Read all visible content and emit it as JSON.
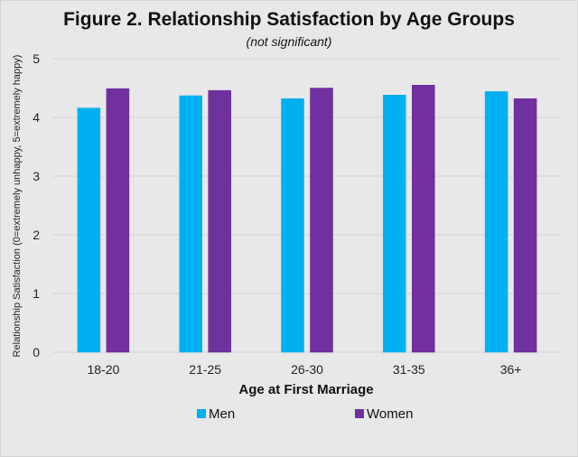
{
  "chart_data": {
    "type": "bar",
    "title": "Figure 2. Relationship Satisfaction by Age Groups",
    "subtitle": "(not significant)",
    "xlabel": "Age at First Marriage",
    "ylabel": "Relationship Satisfaction (0=extremely unhappy, 5=extremely happy)",
    "categories": [
      "18-20",
      "21-25",
      "26-30",
      "31-35",
      "36+"
    ],
    "ylim": [
      0,
      5
    ],
    "yticks": [
      0,
      1,
      2,
      3,
      4,
      5
    ],
    "grid": true,
    "legend": "bottom",
    "series": [
      {
        "name": "Men",
        "color": "#00b0f0",
        "values": [
          4.16,
          4.37,
          4.32,
          4.38,
          4.44
        ]
      },
      {
        "name": "Women",
        "color": "#7030a0",
        "values": [
          4.49,
          4.46,
          4.5,
          4.55,
          4.32
        ]
      }
    ]
  }
}
